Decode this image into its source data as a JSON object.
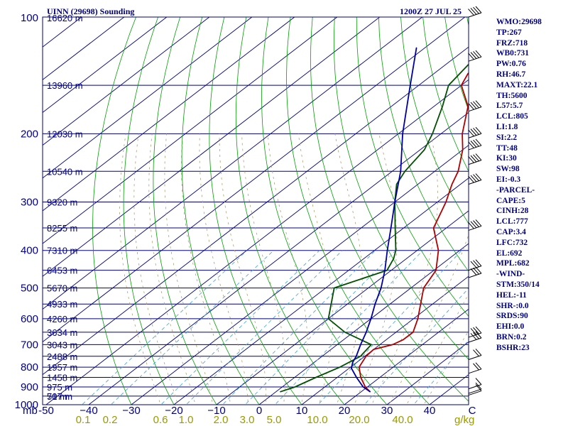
{
  "header": {
    "station": "UINN (29698) Sounding",
    "time": "1200Z 27 JUL 25"
  },
  "indices": [
    "WMO:29698",
    "TP:267",
    "FRZ:718",
    "WB0:731",
    "PW:0.76",
    "RH:46.7",
    "MAXT:22.1",
    "TH:5600",
    "L57:5.7",
    "LCL:805",
    "LI:1.8",
    "SI:2.2",
    "TT:48",
    "KI:30",
    "SW:98",
    "EI:-0.3",
    "-PARCEL-",
    "CAPE:5",
    "CINH:28",
    "LCL:777",
    "CAP:3.4",
    "LFC:732",
    "EL:692",
    "MPL:682",
    "-WIND-",
    "STM:350/14",
    "HEL:-11",
    "SHR-:0.0",
    "SRDS:90",
    "EHI:0.0",
    "BRN:0.2",
    "BSHR:23"
  ],
  "colors": {
    "isobar": "#000080",
    "isotherm": "#000080",
    "dry_adiabat": "#00a000",
    "moist_adiabat": "#b0a070",
    "mixing_ratio": "#40a0d0",
    "temperature": "#b00000",
    "dewpoint": "#005000",
    "parcel": "#0000a0",
    "text": "#000080"
  },
  "chart_data": {
    "type": "line",
    "title": "UINN (29698) Sounding",
    "subtitle": "1200Z 27 JUL 25",
    "xlabel": "C",
    "ylabel": "mb",
    "xlim": [
      -50,
      50
    ],
    "ylim": [
      1000,
      100
    ],
    "pressure_ticks": [
      100,
      200,
      300,
      400,
      500,
      600,
      700,
      800,
      900,
      1000
    ],
    "pressure_tick_labels": [
      "100",
      "200",
      "300",
      "400",
      "500",
      "600",
      "700",
      "800",
      "900",
      "1000"
    ],
    "temperature_ticks": [
      -50,
      -40,
      -30,
      -20,
      -10,
      0,
      10,
      20,
      30,
      40,
      50
    ],
    "temperature_tick_labels": [
      "-50",
      "−40",
      "−30",
      "−20",
      "−10",
      "0",
      "10",
      "20",
      "30",
      "40",
      "C"
    ],
    "height_levels": [
      {
        "p": 100,
        "label": "16620 m"
      },
      {
        "p": 150,
        "label": "13960 m"
      },
      {
        "p": 200,
        "label": "12030 m"
      },
      {
        "p": 250,
        "label": "10540 m"
      },
      {
        "p": 300,
        "label": "9320 m"
      },
      {
        "p": 350,
        "label": "8255 m"
      },
      {
        "p": 400,
        "label": "7310 m"
      },
      {
        "p": 450,
        "label": "6453 m"
      },
      {
        "p": 500,
        "label": "5670 m"
      },
      {
        "p": 550,
        "label": "4933 m"
      },
      {
        "p": 600,
        "label": "4260 m"
      },
      {
        "p": 650,
        "label": "3634 m"
      },
      {
        "p": 700,
        "label": "3043 m"
      },
      {
        "p": 750,
        "label": "2488 m"
      },
      {
        "p": 800,
        "label": "1957 m"
      },
      {
        "p": 850,
        "label": "1458 m"
      },
      {
        "p": 900,
        "label": "975 m"
      },
      {
        "p": 950,
        "label": "517 m"
      },
      {
        "p": 1000,
        "label": "70 m"
      }
    ],
    "mixing_ratio_ticks": [
      0.1,
      0.2,
      0.6,
      1.0,
      2.0,
      3.0,
      5.0,
      10.0,
      20.0,
      40.0
    ],
    "mixing_ratio_tick_labels": [
      "0.1",
      "0.2",
      "0.6",
      "1.0",
      "2.0",
      "3.0",
      "5.0",
      "10.0",
      "20.0",
      "40.0"
    ],
    "mixing_ratio_unit": "g/kg",
    "series": [
      {
        "name": "temperature",
        "points": [
          [
            926,
            22.1
          ],
          [
            900,
            19.5
          ],
          [
            850,
            15.5
          ],
          [
            800,
            12.0
          ],
          [
            750,
            10.3
          ],
          [
            720,
            10.0
          ],
          [
            700,
            13.0
          ],
          [
            680,
            14.0
          ],
          [
            650,
            14.0
          ],
          [
            600,
            11.0
          ],
          [
            500,
            3.0
          ],
          [
            450,
            0.5
          ],
          [
            400,
            -5.0
          ],
          [
            350,
            -13.0
          ],
          [
            300,
            -18.0
          ],
          [
            270,
            -22.0
          ],
          [
            250,
            -24.5
          ],
          [
            220,
            -30.0
          ],
          [
            200,
            -35.0
          ],
          [
            170,
            -42.0
          ],
          [
            150,
            -50.0
          ],
          [
            140,
            -52.0
          ],
          [
            120,
            -54.0
          ],
          [
            100,
            -55.0
          ]
        ]
      },
      {
        "name": "dewpoint",
        "points": [
          [
            926,
            1.0
          ],
          [
            900,
            3.0
          ],
          [
            850,
            5.0
          ],
          [
            800,
            7.5
          ],
          [
            750,
            9.0
          ],
          [
            700,
            8.0
          ],
          [
            650,
            -2.0
          ],
          [
            600,
            -10.0
          ],
          [
            500,
            -18.0
          ],
          [
            450,
            -11.0
          ],
          [
            420,
            -13.0
          ],
          [
            400,
            -15.0
          ],
          [
            350,
            -22.0
          ],
          [
            300,
            -30.0
          ],
          [
            270,
            -35.0
          ],
          [
            250,
            -37.0
          ],
          [
            220,
            -39.0
          ],
          [
            200,
            -42.0
          ],
          [
            170,
            -48.0
          ],
          [
            150,
            -53.0
          ],
          [
            120,
            -56.0
          ],
          [
            100,
            -57.0
          ]
        ]
      },
      {
        "name": "parcel",
        "points": [
          [
            926,
            22.1
          ],
          [
            900,
            19.0
          ],
          [
            850,
            14.5
          ],
          [
            805,
            10.5
          ],
          [
            777,
            9.0
          ],
          [
            750,
            8.0
          ],
          [
            700,
            5.5
          ],
          [
            650,
            3.0
          ],
          [
            600,
            0.0
          ],
          [
            550,
            -3.5
          ],
          [
            500,
            -7.0
          ],
          [
            450,
            -11.5
          ],
          [
            400,
            -17.0
          ],
          [
            350,
            -23.0
          ],
          [
            300,
            -30.0
          ],
          [
            250,
            -38.0
          ],
          [
            200,
            -49.0
          ],
          [
            150,
            -62.0
          ],
          [
            120,
            -72.0
          ]
        ]
      }
    ],
    "wind_barbs": [
      {
        "p": 945,
        "speed_kt": 10
      },
      {
        "p": 935,
        "speed_kt": 10
      },
      {
        "p": 910,
        "speed_kt": 10
      },
      {
        "p": 830,
        "speed_kt": 15
      },
      {
        "p": 765,
        "speed_kt": 20
      },
      {
        "p": 690,
        "speed_kt": 25
      },
      {
        "p": 670,
        "speed_kt": 30
      },
      {
        "p": 470,
        "speed_kt": 25
      },
      {
        "p": 450,
        "speed_kt": 25
      },
      {
        "p": 355,
        "speed_kt": 35
      },
      {
        "p": 270,
        "speed_kt": 40
      },
      {
        "p": 240,
        "speed_kt": 40
      },
      {
        "p": 220,
        "speed_kt": 45
      },
      {
        "p": 205,
        "speed_kt": 45
      },
      {
        "p": 175,
        "speed_kt": 40
      },
      {
        "p": 130,
        "speed_kt": 40
      },
      {
        "p": 100,
        "speed_kt": 35
      }
    ]
  }
}
